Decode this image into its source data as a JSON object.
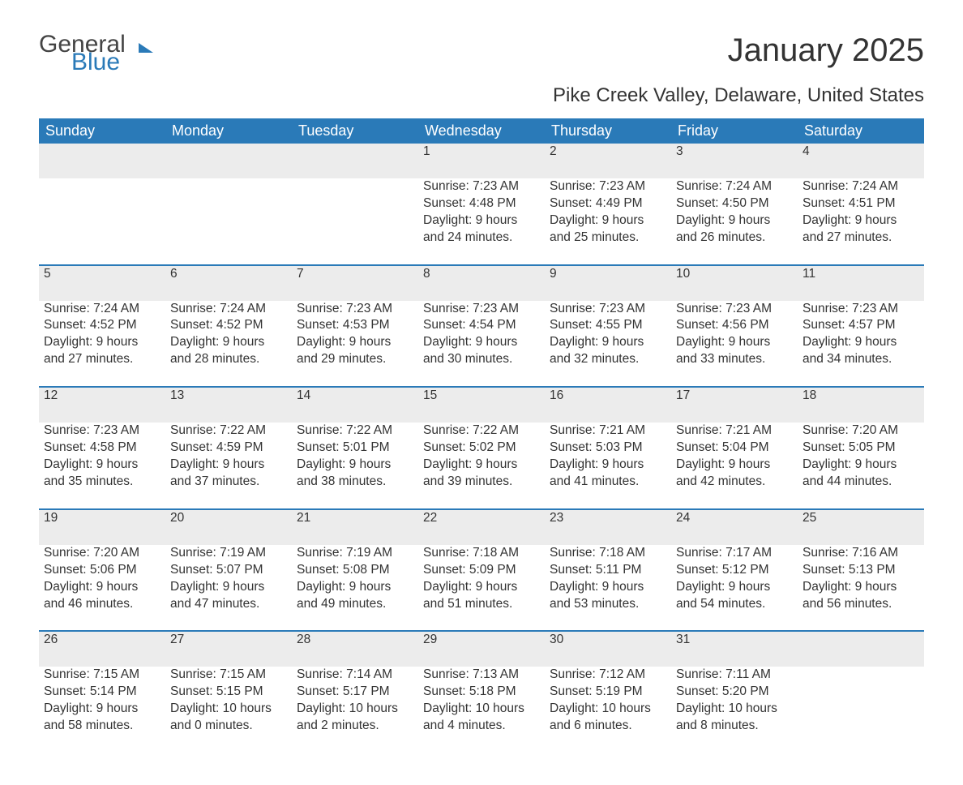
{
  "logo": {
    "part1": "General",
    "part2": "Blue",
    "brand_color": "#2a7ab8"
  },
  "title": "January 2025",
  "location": "Pike Creek Valley, Delaware, United States",
  "colors": {
    "header_bg": "#2a7ab8",
    "header_text": "#ffffff",
    "daynum_bg": "#ececec",
    "row_divider": "#2a7ab8",
    "body_text": "#333333"
  },
  "weekdays": [
    "Sunday",
    "Monday",
    "Tuesday",
    "Wednesday",
    "Thursday",
    "Friday",
    "Saturday"
  ],
  "weeks": [
    [
      null,
      null,
      null,
      {
        "d": "1",
        "sunrise": "7:23 AM",
        "sunset": "4:48 PM",
        "daylight": "9 hours and 24 minutes."
      },
      {
        "d": "2",
        "sunrise": "7:23 AM",
        "sunset": "4:49 PM",
        "daylight": "9 hours and 25 minutes."
      },
      {
        "d": "3",
        "sunrise": "7:24 AM",
        "sunset": "4:50 PM",
        "daylight": "9 hours and 26 minutes."
      },
      {
        "d": "4",
        "sunrise": "7:24 AM",
        "sunset": "4:51 PM",
        "daylight": "9 hours and 27 minutes."
      }
    ],
    [
      {
        "d": "5",
        "sunrise": "7:24 AM",
        "sunset": "4:52 PM",
        "daylight": "9 hours and 27 minutes."
      },
      {
        "d": "6",
        "sunrise": "7:24 AM",
        "sunset": "4:52 PM",
        "daylight": "9 hours and 28 minutes."
      },
      {
        "d": "7",
        "sunrise": "7:23 AM",
        "sunset": "4:53 PM",
        "daylight": "9 hours and 29 minutes."
      },
      {
        "d": "8",
        "sunrise": "7:23 AM",
        "sunset": "4:54 PM",
        "daylight": "9 hours and 30 minutes."
      },
      {
        "d": "9",
        "sunrise": "7:23 AM",
        "sunset": "4:55 PM",
        "daylight": "9 hours and 32 minutes."
      },
      {
        "d": "10",
        "sunrise": "7:23 AM",
        "sunset": "4:56 PM",
        "daylight": "9 hours and 33 minutes."
      },
      {
        "d": "11",
        "sunrise": "7:23 AM",
        "sunset": "4:57 PM",
        "daylight": "9 hours and 34 minutes."
      }
    ],
    [
      {
        "d": "12",
        "sunrise": "7:23 AM",
        "sunset": "4:58 PM",
        "daylight": "9 hours and 35 minutes."
      },
      {
        "d": "13",
        "sunrise": "7:22 AM",
        "sunset": "4:59 PM",
        "daylight": "9 hours and 37 minutes."
      },
      {
        "d": "14",
        "sunrise": "7:22 AM",
        "sunset": "5:01 PM",
        "daylight": "9 hours and 38 minutes."
      },
      {
        "d": "15",
        "sunrise": "7:22 AM",
        "sunset": "5:02 PM",
        "daylight": "9 hours and 39 minutes."
      },
      {
        "d": "16",
        "sunrise": "7:21 AM",
        "sunset": "5:03 PM",
        "daylight": "9 hours and 41 minutes."
      },
      {
        "d": "17",
        "sunrise": "7:21 AM",
        "sunset": "5:04 PM",
        "daylight": "9 hours and 42 minutes."
      },
      {
        "d": "18",
        "sunrise": "7:20 AM",
        "sunset": "5:05 PM",
        "daylight": "9 hours and 44 minutes."
      }
    ],
    [
      {
        "d": "19",
        "sunrise": "7:20 AM",
        "sunset": "5:06 PM",
        "daylight": "9 hours and 46 minutes."
      },
      {
        "d": "20",
        "sunrise": "7:19 AM",
        "sunset": "5:07 PM",
        "daylight": "9 hours and 47 minutes."
      },
      {
        "d": "21",
        "sunrise": "7:19 AM",
        "sunset": "5:08 PM",
        "daylight": "9 hours and 49 minutes."
      },
      {
        "d": "22",
        "sunrise": "7:18 AM",
        "sunset": "5:09 PM",
        "daylight": "9 hours and 51 minutes."
      },
      {
        "d": "23",
        "sunrise": "7:18 AM",
        "sunset": "5:11 PM",
        "daylight": "9 hours and 53 minutes."
      },
      {
        "d": "24",
        "sunrise": "7:17 AM",
        "sunset": "5:12 PM",
        "daylight": "9 hours and 54 minutes."
      },
      {
        "d": "25",
        "sunrise": "7:16 AM",
        "sunset": "5:13 PM",
        "daylight": "9 hours and 56 minutes."
      }
    ],
    [
      {
        "d": "26",
        "sunrise": "7:15 AM",
        "sunset": "5:14 PM",
        "daylight": "9 hours and 58 minutes."
      },
      {
        "d": "27",
        "sunrise": "7:15 AM",
        "sunset": "5:15 PM",
        "daylight": "10 hours and 0 minutes."
      },
      {
        "d": "28",
        "sunrise": "7:14 AM",
        "sunset": "5:17 PM",
        "daylight": "10 hours and 2 minutes."
      },
      {
        "d": "29",
        "sunrise": "7:13 AM",
        "sunset": "5:18 PM",
        "daylight": "10 hours and 4 minutes."
      },
      {
        "d": "30",
        "sunrise": "7:12 AM",
        "sunset": "5:19 PM",
        "daylight": "10 hours and 6 minutes."
      },
      {
        "d": "31",
        "sunrise": "7:11 AM",
        "sunset": "5:20 PM",
        "daylight": "10 hours and 8 minutes."
      },
      null
    ]
  ],
  "labels": {
    "sunrise": "Sunrise: ",
    "sunset": "Sunset: ",
    "daylight": "Daylight: "
  }
}
